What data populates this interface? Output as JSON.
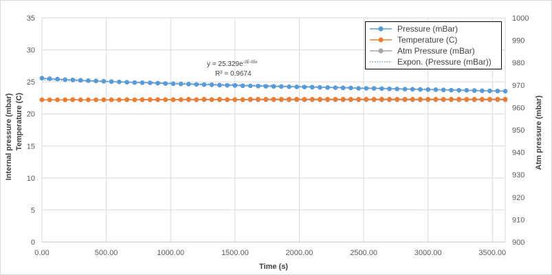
{
  "chart_data": {
    "type": "scatter",
    "xlabel": "Time (s)",
    "ylabel_left": [
      "Internal pressure (mbar)",
      "Temperature (C)"
    ],
    "ylabel_right": "Atm pressure (mbar)",
    "xlim": [
      0,
      3600
    ],
    "ylim_left": [
      0,
      35
    ],
    "ylim_right": [
      900,
      1000
    ],
    "x_ticks": [
      "0.00",
      "500.00",
      "1000.00",
      "1500.00",
      "2000.00",
      "2500.00",
      "3000.00",
      "3500.00"
    ],
    "y_ticks_left": [
      "0",
      "5",
      "10",
      "15",
      "20",
      "25",
      "30",
      "35"
    ],
    "y_ticks_right": [
      "900",
      "910",
      "920",
      "930",
      "940",
      "950",
      "960",
      "970",
      "980",
      "990",
      "1000"
    ],
    "grid": "horizontal and vertical major gridlines",
    "legend_position": "top-right",
    "x": [
      0,
      60,
      120,
      180,
      240,
      300,
      360,
      420,
      480,
      540,
      600,
      660,
      720,
      780,
      840,
      900,
      960,
      1020,
      1080,
      1140,
      1200,
      1260,
      1320,
      1380,
      1440,
      1500,
      1560,
      1620,
      1680,
      1740,
      1800,
      1860,
      1920,
      1980,
      2040,
      2100,
      2160,
      2220,
      2280,
      2340,
      2400,
      2460,
      2520,
      2580,
      2640,
      2700,
      2760,
      2820,
      2880,
      2940,
      3000,
      3060,
      3120,
      3180,
      3240,
      3300,
      3360,
      3420,
      3480,
      3540,
      3600
    ],
    "series": [
      {
        "name": "Pressure (mBar)",
        "axis": "left",
        "color": "#5b9bd5",
        "marker": "circle",
        "values": [
          25.6,
          25.5,
          25.45,
          25.35,
          25.3,
          25.25,
          25.2,
          25.15,
          25.1,
          25.05,
          25.0,
          24.95,
          24.9,
          24.88,
          24.85,
          24.8,
          24.75,
          24.72,
          24.68,
          24.65,
          24.6,
          24.57,
          24.55,
          24.5,
          24.47,
          24.45,
          24.4,
          24.38,
          24.35,
          24.32,
          24.3,
          24.27,
          24.25,
          24.22,
          24.2,
          24.18,
          24.15,
          24.12,
          24.1,
          24.07,
          24.05,
          24.0,
          24.0,
          23.98,
          23.95,
          23.92,
          23.9,
          23.88,
          23.85,
          23.82,
          23.8,
          23.78,
          23.75,
          23.72,
          23.7,
          23.68,
          23.65,
          23.62,
          23.6,
          23.58,
          23.55
        ]
      },
      {
        "name": "Temperature (C)",
        "axis": "left",
        "color": "#ed7d31",
        "marker": "circle",
        "values": [
          22.2,
          22.2,
          22.2,
          22.2,
          22.25,
          22.2,
          22.2,
          22.2,
          22.2,
          22.2,
          22.2,
          22.25,
          22.2,
          22.25,
          22.25,
          22.25,
          22.25,
          22.25,
          22.25,
          22.3,
          22.25,
          22.3,
          22.25,
          22.3,
          22.25,
          22.25,
          22.25,
          22.3,
          22.3,
          22.3,
          22.3,
          22.3,
          22.3,
          22.3,
          22.3,
          22.3,
          22.3,
          22.3,
          22.3,
          22.3,
          22.3,
          22.3,
          22.3,
          22.3,
          22.3,
          22.3,
          22.3,
          22.3,
          22.3,
          22.3,
          22.3,
          22.3,
          22.3,
          22.3,
          22.3,
          22.3,
          22.3,
          22.3,
          22.3,
          22.3,
          22.3
        ]
      },
      {
        "name": "Atm Pressure (mBar)",
        "axis": "left",
        "color": "#a5a5a5",
        "marker": "circle",
        "values": [
          22.2,
          22.2,
          22.2,
          22.2,
          22.2,
          22.2,
          22.2,
          22.2,
          22.2,
          22.2,
          22.2,
          22.2,
          22.2,
          22.2,
          22.2,
          22.2,
          22.2,
          22.2,
          22.2,
          22.2,
          22.2,
          22.2,
          22.2,
          22.2,
          22.2,
          22.2,
          22.2,
          22.2,
          22.2,
          22.2,
          22.2,
          22.2,
          22.2,
          22.2,
          22.2,
          22.2,
          22.2,
          22.2,
          22.2,
          22.2,
          22.2,
          22.2,
          22.2,
          22.2,
          22.2,
          22.2,
          22.2,
          22.2,
          22.2,
          22.2,
          22.2,
          22.2,
          22.2,
          22.2,
          22.2,
          22.2,
          22.2,
          22.2,
          22.2,
          22.2,
          22.2
        ]
      }
    ],
    "trendline": {
      "name": "Expon. (Pressure (mBar))",
      "color": "#5b9bd5",
      "style": "dotted",
      "coefficient": 25.329,
      "exponent": -2e-05,
      "equation_prefix": "y = 25.329e",
      "equation_exponent": "-2E-05x",
      "r_squared_label": "R² = 0.9674"
    }
  }
}
